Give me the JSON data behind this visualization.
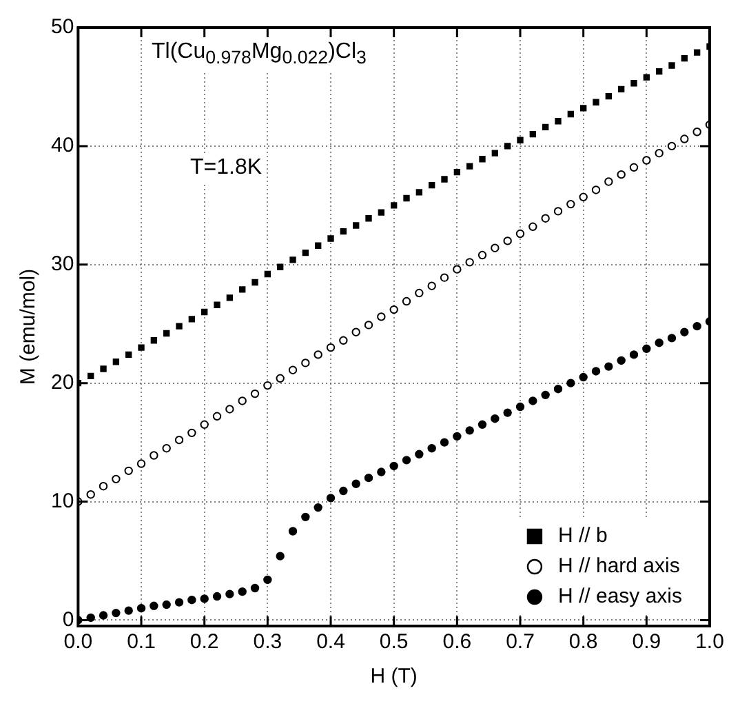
{
  "chart_data": {
    "type": "scatter",
    "xlabel": "H (T)",
    "ylabel": "M (emu/mol)",
    "annotations": [
      "Tl(Cu$_{0.978}$Mg$_{0.022}$)Cl$_{3}$",
      "T=1.8K"
    ],
    "x": [
      0,
      0.02,
      0.04,
      0.06,
      0.08,
      0.1,
      0.12,
      0.14,
      0.16,
      0.18,
      0.2,
      0.22,
      0.24,
      0.26,
      0.28,
      0.3,
      0.32,
      0.34,
      0.36,
      0.38,
      0.4,
      0.42,
      0.44,
      0.46,
      0.48,
      0.5,
      0.52,
      0.54,
      0.56,
      0.58,
      0.6,
      0.62,
      0.64,
      0.66,
      0.68,
      0.7,
      0.72,
      0.74,
      0.76,
      0.78,
      0.8,
      0.82,
      0.84,
      0.86,
      0.88,
      0.9,
      0.92,
      0.94,
      0.96,
      0.98,
      1.0
    ],
    "series": [
      {
        "name": "H // b",
        "color": "#000000",
        "marker": "square",
        "values": [
          20,
          20.6,
          21.2,
          21.8,
          22.4,
          23.0,
          23.6,
          24.2,
          24.8,
          25.4,
          26.0,
          26.6,
          27.2,
          27.9,
          28.5,
          29.2,
          29.8,
          30.4,
          31.0,
          31.6,
          32.2,
          32.8,
          33.3,
          33.9,
          34.4,
          35.0,
          35.6,
          36.1,
          36.7,
          37.2,
          37.8,
          38.3,
          38.9,
          39.4,
          40.0,
          40.5,
          41.0,
          41.6,
          42.1,
          42.7,
          43.2,
          43.7,
          44.2,
          44.8,
          45.3,
          45.8,
          46.3,
          46.8,
          47.4,
          47.9,
          48.4
        ]
      },
      {
        "name": "H // hard axis",
        "color": "#ffffff",
        "marker": "circle",
        "values": [
          10,
          10.6,
          11.3,
          11.9,
          12.6,
          13.2,
          13.9,
          14.5,
          15.2,
          15.8,
          16.5,
          17.2,
          17.8,
          18.5,
          19.1,
          19.8,
          20.4,
          21.1,
          21.7,
          22.4,
          23.0,
          23.6,
          24.3,
          24.9,
          25.6,
          26.2,
          26.9,
          27.6,
          28.2,
          28.9,
          29.6,
          30.2,
          30.8,
          31.4,
          32.0,
          32.6,
          33.2,
          33.9,
          34.5,
          35.1,
          35.7,
          36.3,
          37.0,
          37.6,
          38.2,
          38.8,
          39.4,
          40.0,
          40.6,
          41.2,
          41.8
        ]
      },
      {
        "name": "H // easy axis",
        "color": "#000000",
        "marker": "circle",
        "values": [
          0,
          0.2,
          0.4,
          0.6,
          0.8,
          1.0,
          1.2,
          1.3,
          1.5,
          1.7,
          1.8,
          2.0,
          2.2,
          2.4,
          2.7,
          3.4,
          5.4,
          7.5,
          8.7,
          9.5,
          10.3,
          10.9,
          11.5,
          12.0,
          12.5,
          13.0,
          13.5,
          14.0,
          14.5,
          15.0,
          15.5,
          16.0,
          16.5,
          17.0,
          17.5,
          18.0,
          18.5,
          19.0,
          19.5,
          20.0,
          20.5,
          21.0,
          21.4,
          21.9,
          22.4,
          22.9,
          23.4,
          23.8,
          24.3,
          24.8,
          25.2
        ]
      }
    ],
    "xlim": [
      0,
      1
    ],
    "xticks": [
      {
        "value": 0,
        "label": "0.0"
      },
      {
        "value": 0.1,
        "label": "0.1"
      },
      {
        "value": 0.2,
        "label": "0.2"
      },
      {
        "value": 0.3,
        "label": "0.3"
      },
      {
        "value": 0.4,
        "label": "0.4"
      },
      {
        "value": 0.5,
        "label": "0.5"
      },
      {
        "value": 0.6,
        "label": "0.6"
      },
      {
        "value": 0.7,
        "label": "0.7"
      },
      {
        "value": 0.8,
        "label": "0.8"
      },
      {
        "value": 0.9,
        "label": "0.9"
      },
      {
        "value": 1,
        "label": "1.0"
      }
    ],
    "ylim": [
      -0.5,
      50
    ],
    "yticks": [
      0,
      10,
      20,
      30,
      40,
      50
    ],
    "grid": true,
    "legend": "bottom right"
  }
}
